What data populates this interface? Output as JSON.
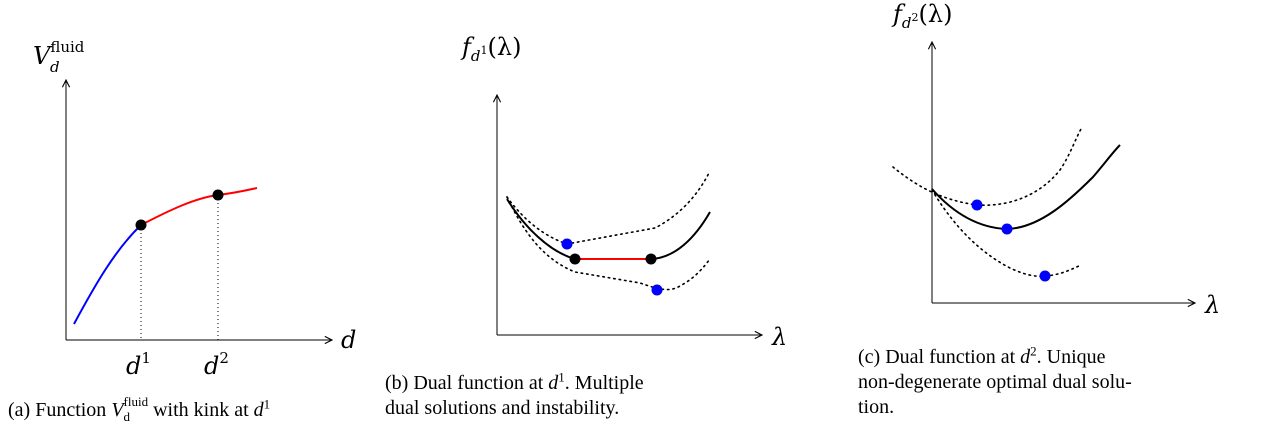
{
  "panels": [
    {
      "id": "a",
      "y_label": {
        "base": "V",
        "sub": "d",
        "sup": "fluid"
      },
      "x_label": "d",
      "ticks": [
        {
          "base": "d",
          "sup": "1"
        },
        {
          "base": "d",
          "sup": "2"
        }
      ],
      "caption": {
        "prefix": "(a) Function ",
        "base": "V",
        "sub": "d",
        "sup": "fluid",
        "middle": " with kink at ",
        "tail_base": "d",
        "tail_sup": "1"
      },
      "colors": {
        "before_kink": "#0000ff",
        "after_kink": "#ff0000"
      }
    },
    {
      "id": "b",
      "y_label": {
        "base": "f",
        "sub": "d",
        "subsup": "1",
        "arg": "(λ)"
      },
      "x_label": "λ",
      "caption": {
        "prefix": "(b) Dual function at ",
        "base": "d",
        "sup": "1",
        "rest": ". Multiple",
        "line2": "dual solutions and instability."
      },
      "colors": {
        "flat_segment": "#ff0000",
        "points": "#0000ff"
      }
    },
    {
      "id": "c",
      "y_label": {
        "base": "f",
        "sub": "d",
        "subsup": "2",
        "arg": "(λ)"
      },
      "x_label": "λ",
      "caption": {
        "prefix": "(c) Dual function at ",
        "base": "d",
        "sup": "2",
        "rest": ".  Unique",
        "line2": "non-degenerate optimal dual solu-",
        "line3": "tion."
      },
      "colors": {
        "points": "#0000ff"
      }
    }
  ]
}
